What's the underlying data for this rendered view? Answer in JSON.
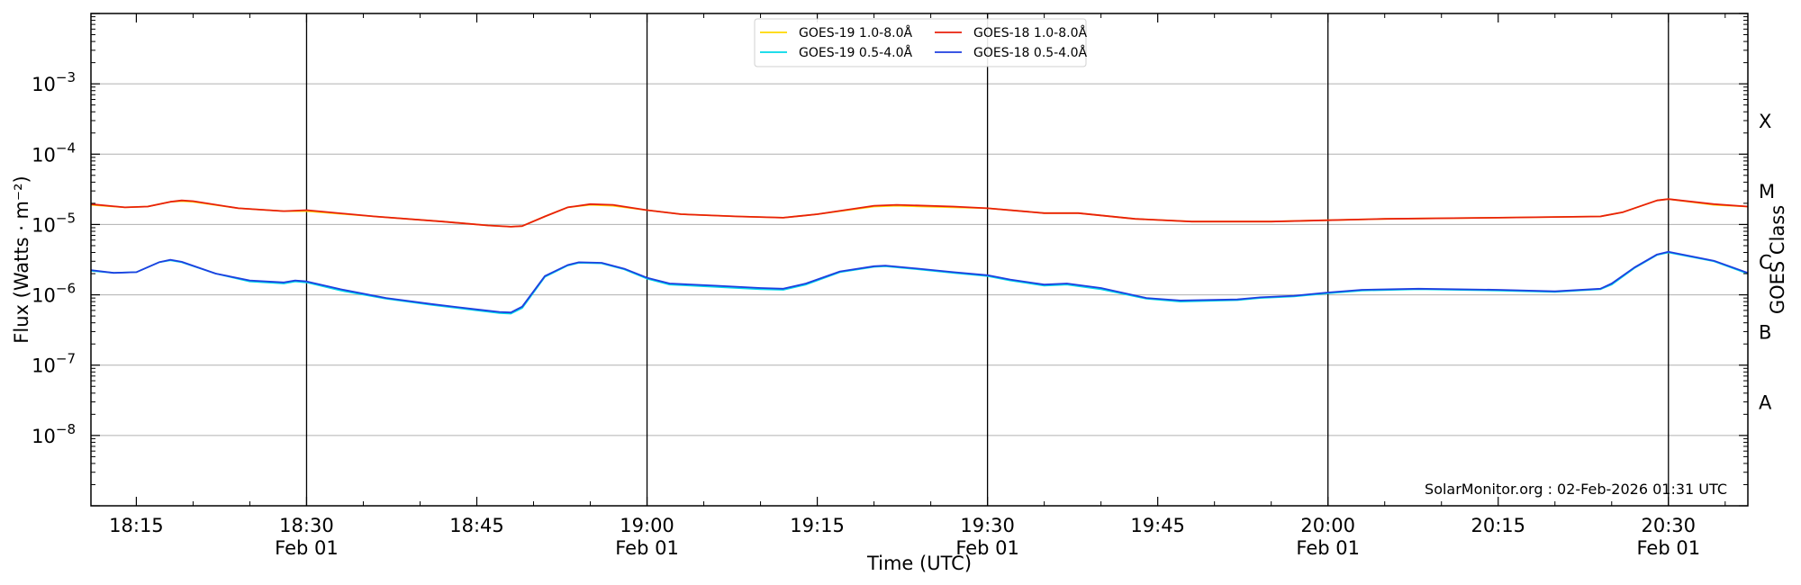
{
  "chart_data": {
    "type": "line",
    "xlabel": "Time (UTC)",
    "ylabel": "Flux (Watts · m⁻²)",
    "ylabel_right": "GOES Class",
    "y_scale": "log",
    "ylim": [
      1e-09,
      0.01
    ],
    "xlim": [
      "2026-02-01 18:11",
      "2026-02-01 20:37"
    ],
    "grid": "horizontal",
    "legend_position": "top-center",
    "y_ticks": [
      {
        "value": 1e-08,
        "base": "10",
        "exp": "−8"
      },
      {
        "value": 1e-07,
        "base": "10",
        "exp": "−7"
      },
      {
        "value": 1e-06,
        "base": "10",
        "exp": "−6"
      },
      {
        "value": 1e-05,
        "base": "10",
        "exp": "−5"
      },
      {
        "value": 0.0001,
        "base": "10",
        "exp": "−4"
      },
      {
        "value": 0.001,
        "base": "10",
        "exp": "−3"
      }
    ],
    "x_ticks": [
      {
        "time": "18:15",
        "label": "18:15",
        "date": ""
      },
      {
        "time": "18:30",
        "label": "18:30",
        "date": "Feb 01"
      },
      {
        "time": "18:45",
        "label": "18:45",
        "date": ""
      },
      {
        "time": "19:00",
        "label": "19:00",
        "date": "Feb 01"
      },
      {
        "time": "19:15",
        "label": "19:15",
        "date": ""
      },
      {
        "time": "19:30",
        "label": "19:30",
        "date": "Feb 01"
      },
      {
        "time": "19:45",
        "label": "19:45",
        "date": ""
      },
      {
        "time": "20:00",
        "label": "20:00",
        "date": "Feb 01"
      },
      {
        "time": "20:15",
        "label": "20:15",
        "date": ""
      },
      {
        "time": "20:30",
        "label": "20:30",
        "date": "Feb 01"
      }
    ],
    "vertical_lines": [
      "18:30",
      "19:00",
      "19:30",
      "20:00",
      "20:30"
    ],
    "goes_classes": [
      {
        "label": "A",
        "value": 3e-08
      },
      {
        "label": "B",
        "value": 3e-07
      },
      {
        "label": "C",
        "value": 3e-06
      },
      {
        "label": "M",
        "value": 3e-05
      },
      {
        "label": "X",
        "value": 0.0003
      }
    ],
    "watermark": "SolarMonitor.org : 02-Feb-2026 01:31 UTC",
    "series": [
      {
        "name": "GOES-19 1.0-8.0Å",
        "color": "#ffd700",
        "points": [
          [
            "18:11",
            1.9e-05
          ],
          [
            "18:14",
            1.75e-05
          ],
          [
            "18:16",
            1.8e-05
          ],
          [
            "18:18",
            2.1e-05
          ],
          [
            "18:19",
            2.15e-05
          ],
          [
            "18:20",
            2.1e-05
          ],
          [
            "18:24",
            1.7e-05
          ],
          [
            "18:28",
            1.55e-05
          ],
          [
            "18:30",
            1.55e-05
          ],
          [
            "18:36",
            1.3e-05
          ],
          [
            "18:42",
            1.1e-05
          ],
          [
            "18:46",
            9.7e-06
          ],
          [
            "18:48",
            9.3e-06
          ],
          [
            "18:49",
            9.5e-06
          ],
          [
            "18:51",
            1.3e-05
          ],
          [
            "18:53",
            1.75e-05
          ],
          [
            "18:55",
            1.9e-05
          ],
          [
            "18:57",
            1.85e-05
          ],
          [
            "19:00",
            1.6e-05
          ],
          [
            "19:03",
            1.4e-05
          ],
          [
            "19:08",
            1.3e-05
          ],
          [
            "19:12",
            1.25e-05
          ],
          [
            "19:15",
            1.4e-05
          ],
          [
            "19:20",
            1.8e-05
          ],
          [
            "19:22",
            1.85e-05
          ],
          [
            "19:27",
            1.75e-05
          ],
          [
            "19:30",
            1.7e-05
          ],
          [
            "19:35",
            1.45e-05
          ],
          [
            "19:38",
            1.45e-05
          ],
          [
            "19:43",
            1.2e-05
          ],
          [
            "19:48",
            1.1e-05
          ],
          [
            "19:55",
            1.1e-05
          ],
          [
            "20:00",
            1.15e-05
          ],
          [
            "20:05",
            1.2e-05
          ],
          [
            "20:15",
            1.25e-05
          ],
          [
            "20:24",
            1.3e-05
          ],
          [
            "20:26",
            1.5e-05
          ],
          [
            "20:29",
            2.2e-05
          ],
          [
            "20:30",
            2.3e-05
          ],
          [
            "20:34",
            1.9e-05
          ],
          [
            "20:37",
            1.8e-05
          ]
        ]
      },
      {
        "name": "GOES-18 1.0-8.0Å",
        "color": "#e8200c",
        "points": [
          [
            "18:11",
            1.95e-05
          ],
          [
            "18:14",
            1.75e-05
          ],
          [
            "18:16",
            1.8e-05
          ],
          [
            "18:18",
            2.1e-05
          ],
          [
            "18:19",
            2.2e-05
          ],
          [
            "18:20",
            2.15e-05
          ],
          [
            "18:24",
            1.7e-05
          ],
          [
            "18:28",
            1.55e-05
          ],
          [
            "18:30",
            1.6e-05
          ],
          [
            "18:36",
            1.3e-05
          ],
          [
            "18:42",
            1.1e-05
          ],
          [
            "18:46",
            9.7e-06
          ],
          [
            "18:48",
            9.3e-06
          ],
          [
            "18:49",
            9.5e-06
          ],
          [
            "18:51",
            1.3e-05
          ],
          [
            "18:53",
            1.75e-05
          ],
          [
            "18:55",
            1.95e-05
          ],
          [
            "18:57",
            1.9e-05
          ],
          [
            "19:00",
            1.6e-05
          ],
          [
            "19:03",
            1.4e-05
          ],
          [
            "19:08",
            1.3e-05
          ],
          [
            "19:12",
            1.25e-05
          ],
          [
            "19:15",
            1.4e-05
          ],
          [
            "19:20",
            1.85e-05
          ],
          [
            "19:22",
            1.9e-05
          ],
          [
            "19:27",
            1.8e-05
          ],
          [
            "19:30",
            1.7e-05
          ],
          [
            "19:35",
            1.45e-05
          ],
          [
            "19:38",
            1.45e-05
          ],
          [
            "19:43",
            1.2e-05
          ],
          [
            "19:48",
            1.1e-05
          ],
          [
            "19:55",
            1.1e-05
          ],
          [
            "20:00",
            1.15e-05
          ],
          [
            "20:05",
            1.2e-05
          ],
          [
            "20:15",
            1.25e-05
          ],
          [
            "20:24",
            1.3e-05
          ],
          [
            "20:26",
            1.5e-05
          ],
          [
            "20:29",
            2.2e-05
          ],
          [
            "20:30",
            2.3e-05
          ],
          [
            "20:34",
            1.95e-05
          ],
          [
            "20:37",
            1.8e-05
          ]
        ]
      },
      {
        "name": "GOES-19 0.5-4.0Å",
        "color": "#00d8e8",
        "points": [
          [
            "18:11",
            2.2e-06
          ],
          [
            "18:13",
            2.05e-06
          ],
          [
            "18:15",
            2.1e-06
          ],
          [
            "18:17",
            2.9e-06
          ],
          [
            "18:18",
            3.1e-06
          ],
          [
            "18:19",
            2.9e-06
          ],
          [
            "18:22",
            2e-06
          ],
          [
            "18:25",
            1.55e-06
          ],
          [
            "18:28",
            1.45e-06
          ],
          [
            "18:29",
            1.55e-06
          ],
          [
            "18:30",
            1.5e-06
          ],
          [
            "18:33",
            1.15e-06
          ],
          [
            "18:37",
            8.8e-07
          ],
          [
            "18:41",
            7.2e-07
          ],
          [
            "18:45",
            6e-07
          ],
          [
            "18:47",
            5.5e-07
          ],
          [
            "18:48",
            5.4e-07
          ],
          [
            "18:49",
            6.5e-07
          ],
          [
            "18:51",
            1.8e-06
          ],
          [
            "18:53",
            2.6e-06
          ],
          [
            "18:54",
            2.85e-06
          ],
          [
            "18:56",
            2.8e-06
          ],
          [
            "18:58",
            2.3e-06
          ],
          [
            "19:00",
            1.7e-06
          ],
          [
            "19:02",
            1.4e-06
          ],
          [
            "19:06",
            1.3e-06
          ],
          [
            "19:10",
            1.2e-06
          ],
          [
            "19:12",
            1.18e-06
          ],
          [
            "19:14",
            1.4e-06
          ],
          [
            "19:17",
            2.1e-06
          ],
          [
            "19:20",
            2.5e-06
          ],
          [
            "19:21",
            2.55e-06
          ],
          [
            "19:24",
            2.3e-06
          ],
          [
            "19:27",
            2.05e-06
          ],
          [
            "19:30",
            1.85e-06
          ],
          [
            "19:32",
            1.6e-06
          ],
          [
            "19:35",
            1.35e-06
          ],
          [
            "19:37",
            1.4e-06
          ],
          [
            "19:40",
            1.2e-06
          ],
          [
            "19:44",
            8.8e-07
          ],
          [
            "19:47",
            8e-07
          ],
          [
            "19:52",
            8.4e-07
          ],
          [
            "19:54",
            9e-07
          ],
          [
            "19:57",
            9.5e-07
          ],
          [
            "20:00",
            1.05e-06
          ],
          [
            "20:03",
            1.15e-06
          ],
          [
            "20:08",
            1.2e-06
          ],
          [
            "20:15",
            1.15e-06
          ],
          [
            "20:20",
            1.1e-06
          ],
          [
            "20:24",
            1.2e-06
          ],
          [
            "20:25",
            1.4e-06
          ],
          [
            "20:27",
            2.4e-06
          ],
          [
            "20:29",
            3.7e-06
          ],
          [
            "20:30",
            4e-06
          ],
          [
            "20:34",
            3e-06
          ],
          [
            "20:37",
            2e-06
          ]
        ]
      },
      {
        "name": "GOES-18 0.5-4.0Å",
        "color": "#1f3fe0",
        "points": [
          [
            "18:11",
            2.25e-06
          ],
          [
            "18:13",
            2.05e-06
          ],
          [
            "18:15",
            2.1e-06
          ],
          [
            "18:17",
            2.9e-06
          ],
          [
            "18:18",
            3.15e-06
          ],
          [
            "18:19",
            2.95e-06
          ],
          [
            "18:22",
            2e-06
          ],
          [
            "18:25",
            1.6e-06
          ],
          [
            "18:28",
            1.5e-06
          ],
          [
            "18:29",
            1.6e-06
          ],
          [
            "18:30",
            1.55e-06
          ],
          [
            "18:33",
            1.2e-06
          ],
          [
            "18:37",
            9e-07
          ],
          [
            "18:41",
            7.4e-07
          ],
          [
            "18:45",
            6.2e-07
          ],
          [
            "18:47",
            5.7e-07
          ],
          [
            "18:48",
            5.6e-07
          ],
          [
            "18:49",
            6.8e-07
          ],
          [
            "18:51",
            1.85e-06
          ],
          [
            "18:53",
            2.65e-06
          ],
          [
            "18:54",
            2.9e-06
          ],
          [
            "18:56",
            2.85e-06
          ],
          [
            "18:58",
            2.35e-06
          ],
          [
            "19:00",
            1.75e-06
          ],
          [
            "19:02",
            1.45e-06
          ],
          [
            "19:06",
            1.35e-06
          ],
          [
            "19:10",
            1.25e-06
          ],
          [
            "19:12",
            1.22e-06
          ],
          [
            "19:14",
            1.45e-06
          ],
          [
            "19:17",
            2.15e-06
          ],
          [
            "19:20",
            2.55e-06
          ],
          [
            "19:21",
            2.6e-06
          ],
          [
            "19:24",
            2.35e-06
          ],
          [
            "19:27",
            2.1e-06
          ],
          [
            "19:30",
            1.9e-06
          ],
          [
            "19:32",
            1.65e-06
          ],
          [
            "19:35",
            1.4e-06
          ],
          [
            "19:37",
            1.45e-06
          ],
          [
            "19:40",
            1.25e-06
          ],
          [
            "19:44",
            9e-07
          ],
          [
            "19:47",
            8.3e-07
          ],
          [
            "19:52",
            8.6e-07
          ],
          [
            "19:54",
            9.2e-07
          ],
          [
            "19:57",
            9.7e-07
          ],
          [
            "20:00",
            1.08e-06
          ],
          [
            "20:03",
            1.18e-06
          ],
          [
            "20:08",
            1.22e-06
          ],
          [
            "20:15",
            1.18e-06
          ],
          [
            "20:20",
            1.12e-06
          ],
          [
            "20:24",
            1.22e-06
          ],
          [
            "20:25",
            1.45e-06
          ],
          [
            "20:27",
            2.45e-06
          ],
          [
            "20:29",
            3.75e-06
          ],
          [
            "20:30",
            4.1e-06
          ],
          [
            "20:34",
            3.05e-06
          ],
          [
            "20:37",
            2.05e-06
          ]
        ]
      }
    ],
    "legend": [
      {
        "label": "GOES-19 1.0-8.0Å",
        "color": "#ffd700"
      },
      {
        "label": "GOES-19 0.5-4.0Å",
        "color": "#00d8e8"
      },
      {
        "label": "GOES-18 1.0-8.0Å",
        "color": "#e8200c"
      },
      {
        "label": "GOES-18 0.5-4.0Å",
        "color": "#1f3fe0"
      }
    ]
  }
}
